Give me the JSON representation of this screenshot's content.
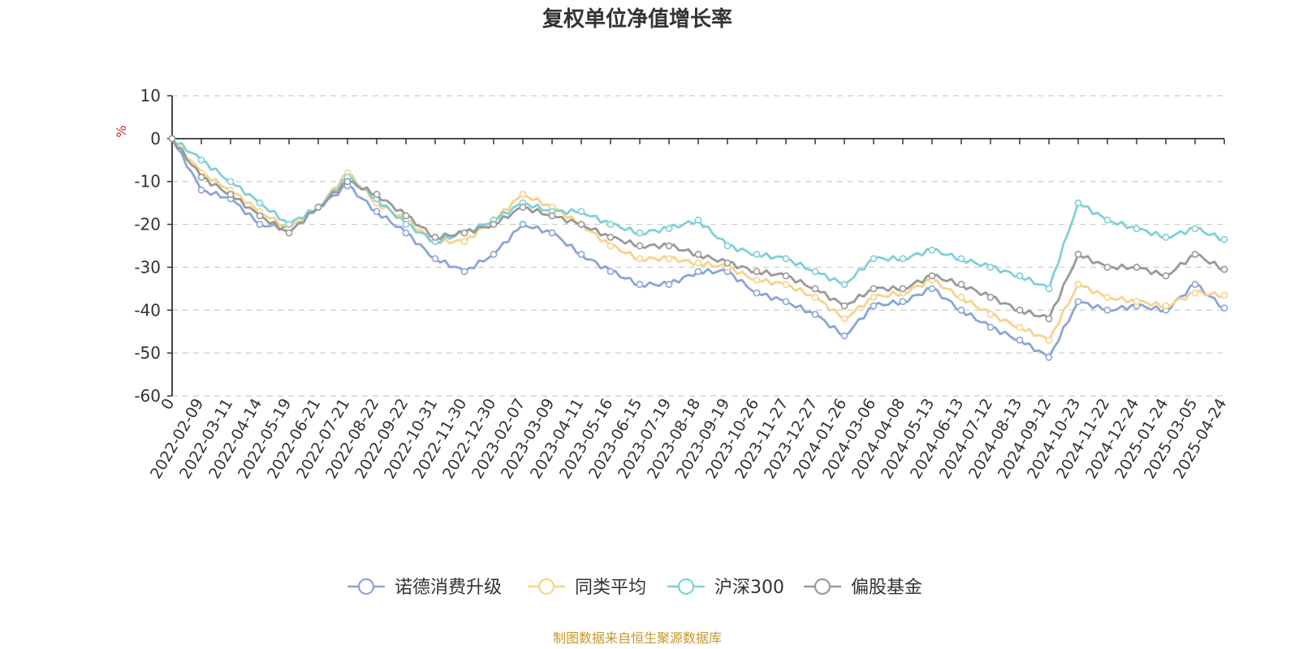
{
  "chart_data": {
    "type": "line",
    "title": "复权单位净值增长率",
    "ylabel": "%",
    "ylim": [
      -60,
      10
    ],
    "yticks": [
      10,
      0,
      -10,
      -20,
      -30,
      -40,
      -50,
      -60
    ],
    "grid": true,
    "legend_position": "bottom",
    "x": [
      "0",
      "2022-02-09",
      "2022-03-11",
      "2022-04-14",
      "2022-05-19",
      "2022-06-21",
      "2022-07-21",
      "2022-08-22",
      "2022-09-22",
      "2022-10-31",
      "2022-11-30",
      "2022-12-30",
      "2023-02-07",
      "2023-03-09",
      "2023-04-11",
      "2023-05-16",
      "2023-06-15",
      "2023-07-19",
      "2023-08-18",
      "2023-09-19",
      "2023-10-26",
      "2023-11-27",
      "2023-12-27",
      "2024-01-26",
      "2024-03-06",
      "2024-04-08",
      "2024-05-13",
      "2024-06-13",
      "2024-07-12",
      "2024-08-13",
      "2024-09-12",
      "2024-10-23",
      "2024-11-22",
      "2024-12-24",
      "2025-01-24",
      "2025-03-05",
      "2025-04-24"
    ],
    "series": [
      {
        "name": "诺德消费升级",
        "color": "#8aa6d6",
        "values": [
          0,
          -12,
          -14,
          -20,
          -21,
          -16,
          -11,
          -17,
          -22,
          -28,
          -31,
          -27,
          -20,
          -22,
          -27,
          -31,
          -34,
          -34,
          -31,
          -31,
          -36,
          -38,
          -41,
          -46,
          -39,
          -38,
          -35,
          -40,
          -44,
          -47,
          -51,
          -38,
          -40,
          -39,
          -40,
          -34,
          -39.5
        ]
      },
      {
        "name": "同类平均",
        "color": "#f7d38a",
        "values": [
          0,
          -8,
          -12,
          -17,
          -21,
          -16,
          -8,
          -15,
          -19,
          -24,
          -24,
          -19,
          -13,
          -16,
          -20,
          -25,
          -28,
          -28,
          -29,
          -30,
          -33,
          -34,
          -37,
          -42,
          -37,
          -36,
          -33,
          -37,
          -41,
          -44,
          -47,
          -34,
          -37,
          -38,
          -39,
          -36,
          -36.5
        ]
      },
      {
        "name": "沪深300",
        "color": "#7fd0d8",
        "values": [
          0,
          -5,
          -10,
          -15,
          -20,
          -16,
          -9,
          -14,
          -20,
          -24,
          -22,
          -19,
          -15,
          -17,
          -17,
          -20,
          -22,
          -21,
          -19,
          -25,
          -27,
          -28,
          -31,
          -34,
          -28,
          -28,
          -26,
          -28,
          -30,
          -32,
          -35,
          -15,
          -19,
          -21,
          -23,
          -21,
          -23.5
        ]
      },
      {
        "name": "偏股基金",
        "color": "#999999",
        "values": [
          0,
          -9,
          -13,
          -18,
          -22,
          -16,
          -10,
          -13,
          -18,
          -23,
          -22,
          -20,
          -16,
          -18,
          -20,
          -23,
          -25,
          -25,
          -27,
          -29,
          -31,
          -32,
          -35,
          -39,
          -35,
          -35,
          -32,
          -34,
          -37,
          -40,
          -42,
          -27,
          -30,
          -30,
          -32,
          -27,
          -30.5
        ]
      }
    ]
  },
  "source": "制图数据来自恒生聚源数据库"
}
